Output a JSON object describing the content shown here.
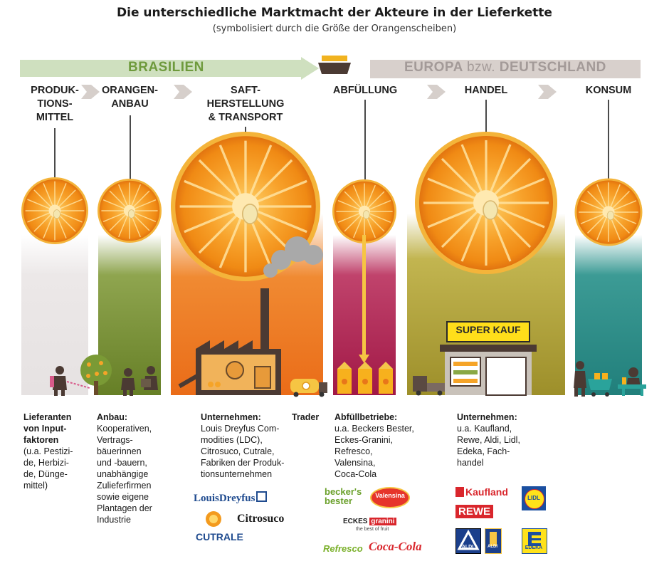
{
  "title": "Die  unterschiedliche Marktmacht der Akteure in der Lieferkette",
  "subtitle": "(symbolisiert durch die Größe der Orangenscheiben)",
  "regions": {
    "brazil": "BRASILIEN",
    "europe_a": "EUROPA",
    "europe_b": "bzw.",
    "europe_c": "DEUTSCHLAND"
  },
  "stages": [
    {
      "lines": [
        "PRODUK-",
        "TIONS-",
        "MITTEL"
      ]
    },
    {
      "lines": [
        "ORANGEN-",
        "ANBAU"
      ]
    },
    {
      "lines": [
        "SAFT-",
        "HERSTELLUNG",
        "& TRANSPORT"
      ]
    },
    {
      "lines": [
        "ABFÜLLUNG"
      ]
    },
    {
      "lines": [
        "HANDEL"
      ]
    },
    {
      "lines": [
        "KONSUM"
      ]
    }
  ],
  "store_sign": "SUPER KAUF",
  "descriptions": {
    "inputs": {
      "head": [
        "Lieferanten",
        "von Input-",
        "faktoren"
      ],
      "body": [
        "(u.a. Pestizi-",
        "de, Herbizi-",
        "de, Dünge-",
        "mittel)"
      ]
    },
    "farming": {
      "head": [
        "Anbau:"
      ],
      "body": [
        "Kooperativen,",
        "Vertrags-",
        "bäuerinnen",
        "und -bauern,",
        "unabhängige",
        "Zulieferfirmen",
        "sowie eigene",
        "Plantagen der",
        "Industrie"
      ]
    },
    "juice": {
      "head": [
        "Unternehmen:"
      ],
      "body": [
        "Louis Dreyfus Com-",
        "modities (LDC),",
        "Citrosuco, Cutrale,",
        "Fabriken der Produk-",
        "tionsunternehmen"
      ]
    },
    "trader": {
      "head": [
        "Trader"
      ]
    },
    "bottling": {
      "head": [
        "Abfüllbetriebe:"
      ],
      "body": [
        "u.a. Beckers Bester,",
        "Eckes-Granini,",
        "Refresco,",
        "Valensina,",
        "Coca-Cola"
      ]
    },
    "retail": {
      "head": [
        "Unternehmen:"
      ],
      "body": [
        "u.a. Kaufland,",
        "Rewe, Aldi, Lidl,",
        "Edeka, Fach-",
        "handel"
      ]
    }
  },
  "logos": {
    "louisdreyfus": "LouisDreyfus",
    "cutrale": "CUTRALE",
    "citrosuco": "Citrosuco",
    "becker_a": "becker's",
    "becker_b": "bester",
    "valensina": "Valensina",
    "eckes_a": "ECKES",
    "eckes_b": "granini",
    "eckes_c": "the best of fruit",
    "refresco": "Refresco",
    "cocacola": "Coca-Cola",
    "kaufland": "Kaufland",
    "rewe": "REWE",
    "lidl": "LIDL",
    "aldi": "ALDI",
    "aldi2": "ALDI",
    "edeka": "EDEKA"
  },
  "colors": {
    "brazil_arrow": "#cfe0bf",
    "brazil_text": "#6e9a3c",
    "europe_bar": "#d8d0cc",
    "europe_text": "#a39a98",
    "orange": "#f39a1e",
    "band_inputs": "#e9e6e6",
    "band_farming": "#6e8a2e",
    "band_juice": "#ec7a1f",
    "band_bottling": "#b0214e",
    "band_retail": "#a89a31",
    "band_consumer": "#2a8a86"
  }
}
